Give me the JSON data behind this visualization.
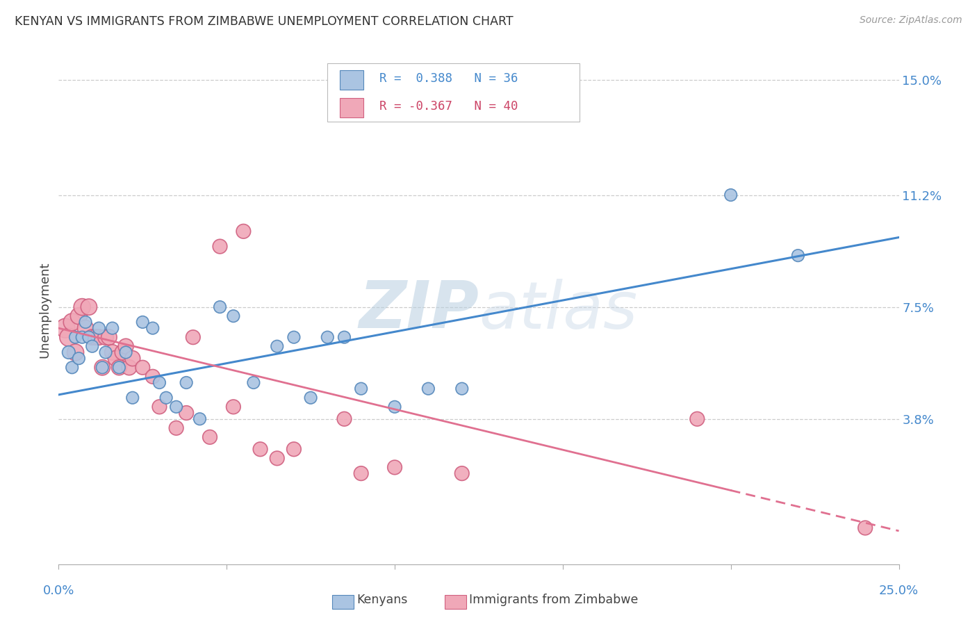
{
  "title": "KENYAN VS IMMIGRANTS FROM ZIMBABWE UNEMPLOYMENT CORRELATION CHART",
  "source": "Source: ZipAtlas.com",
  "ylabel": "Unemployment",
  "yticks": [
    0.038,
    0.075,
    0.112,
    0.15
  ],
  "ytick_labels": [
    "3.8%",
    "7.5%",
    "11.2%",
    "15.0%"
  ],
  "xlim": [
    0.0,
    0.25
  ],
  "ylim": [
    -0.01,
    0.158
  ],
  "kenyan_color": "#aac4e2",
  "zimbabwe_color": "#f0a8b8",
  "kenyan_edge": "#5588bb",
  "zimbabwe_edge": "#d06080",
  "trend_blue": "#4488cc",
  "trend_pink": "#e07090",
  "watermark_color": "#ccd8e8",
  "blue_line_x": [
    0.0,
    0.25
  ],
  "blue_line_y": [
    0.046,
    0.098
  ],
  "pink_line_x": [
    0.0,
    0.25
  ],
  "pink_line_y": [
    0.068,
    0.001
  ],
  "kenyan_x": [
    0.003,
    0.004,
    0.005,
    0.006,
    0.007,
    0.008,
    0.009,
    0.01,
    0.012,
    0.013,
    0.014,
    0.016,
    0.018,
    0.02,
    0.022,
    0.025,
    0.028,
    0.03,
    0.032,
    0.035,
    0.038,
    0.042,
    0.048,
    0.052,
    0.058,
    0.065,
    0.07,
    0.075,
    0.08,
    0.085,
    0.09,
    0.1,
    0.11,
    0.12,
    0.2,
    0.22
  ],
  "kenyan_y": [
    0.06,
    0.055,
    0.065,
    0.058,
    0.065,
    0.07,
    0.065,
    0.062,
    0.068,
    0.055,
    0.06,
    0.068,
    0.055,
    0.06,
    0.045,
    0.07,
    0.068,
    0.05,
    0.045,
    0.042,
    0.05,
    0.038,
    0.075,
    0.072,
    0.05,
    0.062,
    0.065,
    0.045,
    0.065,
    0.065,
    0.048,
    0.042,
    0.048,
    0.048,
    0.112,
    0.092
  ],
  "zimbabwe_x": [
    0.002,
    0.003,
    0.004,
    0.005,
    0.006,
    0.007,
    0.008,
    0.009,
    0.01,
    0.011,
    0.012,
    0.013,
    0.014,
    0.015,
    0.016,
    0.017,
    0.018,
    0.019,
    0.02,
    0.021,
    0.022,
    0.025,
    0.028,
    0.03,
    0.035,
    0.038,
    0.04,
    0.045,
    0.048,
    0.052,
    0.055,
    0.06,
    0.065,
    0.07,
    0.085,
    0.09,
    0.1,
    0.12,
    0.19,
    0.24
  ],
  "zimbabwe_y": [
    0.068,
    0.065,
    0.07,
    0.06,
    0.072,
    0.075,
    0.068,
    0.075,
    0.065,
    0.065,
    0.065,
    0.055,
    0.065,
    0.065,
    0.06,
    0.058,
    0.055,
    0.06,
    0.062,
    0.055,
    0.058,
    0.055,
    0.052,
    0.042,
    0.035,
    0.04,
    0.065,
    0.032,
    0.095,
    0.042,
    0.1,
    0.028,
    0.025,
    0.028,
    0.038,
    0.02,
    0.022,
    0.02,
    0.038,
    0.002
  ],
  "kenyan_sizes": [
    180,
    160,
    160,
    160,
    160,
    160,
    160,
    160,
    160,
    160,
    160,
    160,
    160,
    160,
    160,
    160,
    160,
    160,
    160,
    160,
    160,
    160,
    160,
    160,
    160,
    160,
    160,
    160,
    160,
    160,
    160,
    160,
    160,
    160,
    160,
    160
  ],
  "zimbabwe_sizes": [
    400,
    350,
    320,
    300,
    300,
    300,
    280,
    280,
    260,
    260,
    260,
    260,
    260,
    260,
    260,
    260,
    250,
    250,
    250,
    250,
    250,
    220,
    220,
    220,
    220,
    220,
    220,
    220,
    220,
    220,
    220,
    220,
    220,
    220,
    220,
    220,
    220,
    220,
    220,
    220
  ]
}
